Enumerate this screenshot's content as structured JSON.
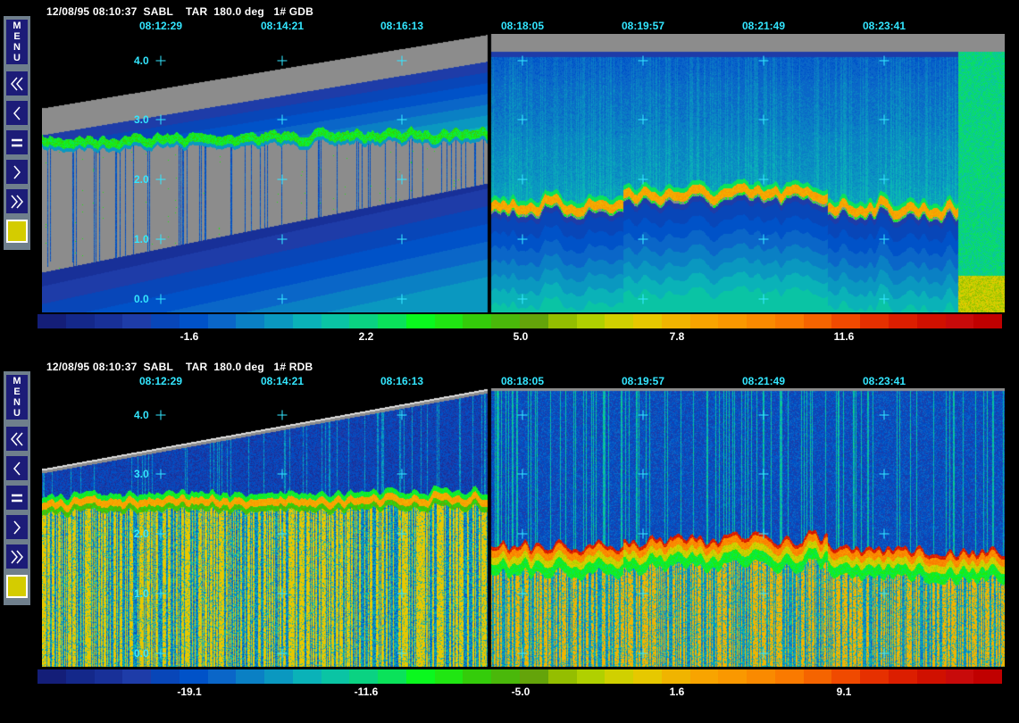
{
  "panels": [
    {
      "id": "gdb",
      "header": "12/08/95 08:10:37  SABL    TAR  180.0 deg   1# GDB",
      "times": [
        "08:12:29",
        "08:14:21",
        "08:16:13",
        "08:18:05",
        "08:19:57",
        "08:21:49",
        "08:23:41"
      ],
      "y_ticks": [
        "4.0",
        "3.0",
        "2.0",
        "1.0",
        "0.0"
      ],
      "colorbar_labels": [
        "-1.6",
        "2.2",
        "5.0",
        "7.8",
        "11.6"
      ]
    },
    {
      "id": "rdb",
      "header": "12/08/95 08:10:37  SABL    TAR  180.0 deg   1# RDB",
      "times": [
        "08:12:29",
        "08:14:21",
        "08:16:13",
        "08:18:05",
        "08:19:57",
        "08:21:49",
        "08:23:41"
      ],
      "y_ticks": [
        "4.0",
        "3.0",
        "2.0",
        "1.0",
        "0.0"
      ],
      "colorbar_labels": [
        "-19.1",
        "-11.6",
        "-5.0",
        "1.6",
        "9.1"
      ]
    }
  ],
  "sidebar": {
    "menu_label": "MENU",
    "buttons": [
      "fast-rewind",
      "step-back",
      "pause",
      "step-forward",
      "fast-forward",
      "color-swatch"
    ],
    "swatch_color": "#d4cc00"
  },
  "colors": {
    "palette": [
      "#141e78",
      "#14288a",
      "#183098",
      "#1e3ca8",
      "#0846b8",
      "#0052c8",
      "#0a66c8",
      "#0a80c4",
      "#0a98c0",
      "#0ab2b8",
      "#0ac4a4",
      "#0ad282",
      "#0ae25a",
      "#0af81e",
      "#20e612",
      "#34cc0a",
      "#4ab80a",
      "#64a40a",
      "#94be00",
      "#b0d000",
      "#d0d000",
      "#e6c800",
      "#f0b400",
      "#f8a400",
      "#fa9800",
      "#fa8a00",
      "#fa7a00",
      "#f56400",
      "#f04a00",
      "#e63000",
      "#dc1e00",
      "#d01000",
      "#c80a0a",
      "#c00000"
    ],
    "grey": "#8c8c8c",
    "accent": "#33e6ff"
  }
}
